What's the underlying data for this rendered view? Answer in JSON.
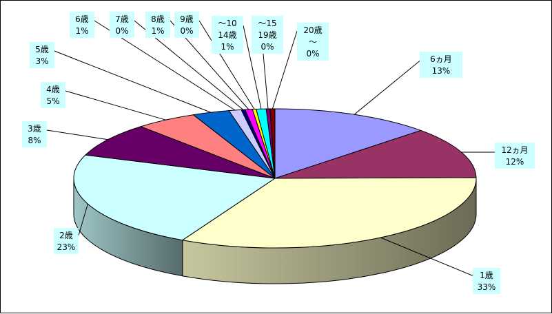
{
  "chart_data": {
    "type": "pie",
    "title": "",
    "style": "3d-exploded-none",
    "label_background": "#CCFFFF",
    "slices": [
      {
        "name": "6ヵ月",
        "value": 13,
        "label": "13%",
        "color": "#9999FF"
      },
      {
        "name": "12ヵ月",
        "value": 12,
        "label": "12%",
        "color": "#993366"
      },
      {
        "name": "1歳",
        "value": 33,
        "label": "33%",
        "color": "#FFFFCC"
      },
      {
        "name": "2歳",
        "value": 23,
        "label": "23%",
        "color": "#CCFFFF"
      },
      {
        "name": "3歳",
        "value": 8,
        "label": "8%",
        "color": "#660066"
      },
      {
        "name": "4歳",
        "value": 5,
        "label": "5%",
        "color": "#FF8080"
      },
      {
        "name": "5歳",
        "value": 3,
        "label": "3%",
        "color": "#0066CC"
      },
      {
        "name": "6歳",
        "value": 1,
        "label": "1%",
        "color": "#CCCCFF"
      },
      {
        "name": "7歳",
        "value": 0.3,
        "label": "0%",
        "color": "#000080"
      },
      {
        "name": "8歳",
        "value": 0.6,
        "label": "1%",
        "color": "#FF00FF"
      },
      {
        "name": "9歳",
        "value": 0.3,
        "label": "0%",
        "color": "#FFFF00"
      },
      {
        "name": "～10\n14歳",
        "value": 0.8,
        "label": "1%",
        "color": "#00FFFF"
      },
      {
        "name": "～15\n19歳",
        "value": 0.3,
        "label": "0%",
        "color": "#800080"
      },
      {
        "name": "20歳\n～",
        "value": 0.4,
        "label": "0%",
        "color": "#800000"
      }
    ]
  }
}
